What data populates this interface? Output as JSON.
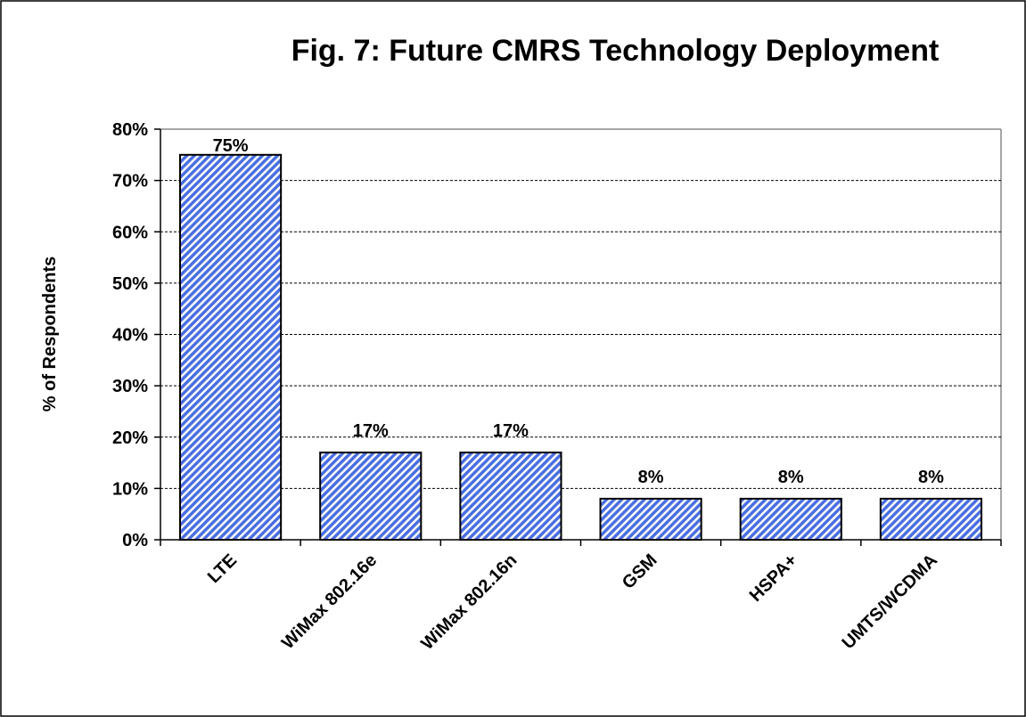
{
  "chart_data": {
    "type": "bar",
    "title": "Fig. 7:  Future CMRS Technology Deployment",
    "ylabel": "% of Respondents",
    "categories": [
      "LTE",
      "WiMax 802.16e",
      "WiMax 802.16n",
      "GSM",
      "HSPA+",
      "UMTS/WCDMA"
    ],
    "values": [
      75,
      17,
      17,
      8,
      8,
      8
    ],
    "value_labels": [
      "75%",
      "17%",
      "17%",
      "8%",
      "8%",
      "8%"
    ],
    "color": "#4a6fe0",
    "ylim": [
      0,
      80
    ],
    "yticks": [
      {
        "value": 0,
        "label": "0%"
      },
      {
        "value": 10,
        "label": "10%"
      },
      {
        "value": 20,
        "label": "20%"
      },
      {
        "value": 30,
        "label": "30%"
      },
      {
        "value": 40,
        "label": "40%"
      },
      {
        "value": 50,
        "label": "50%"
      },
      {
        "value": 60,
        "label": "60%"
      },
      {
        "value": 70,
        "label": "70%"
      },
      {
        "value": 80,
        "label": "80%"
      }
    ],
    "grid": true
  }
}
